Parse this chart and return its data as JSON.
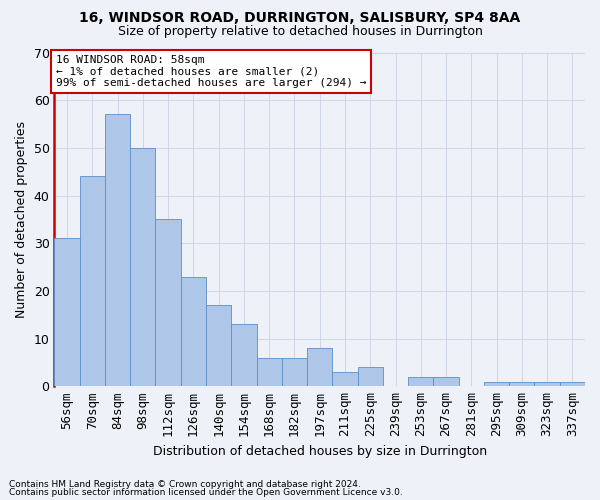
{
  "title1": "16, WINDSOR ROAD, DURRINGTON, SALISBURY, SP4 8AA",
  "title2": "Size of property relative to detached houses in Durrington",
  "xlabel": "Distribution of detached houses by size in Durrington",
  "ylabel": "Number of detached properties",
  "categories": [
    "56sqm",
    "70sqm",
    "84sqm",
    "98sqm",
    "112sqm",
    "126sqm",
    "140sqm",
    "154sqm",
    "168sqm",
    "182sqm",
    "197sqm",
    "211sqm",
    "225sqm",
    "239sqm",
    "253sqm",
    "267sqm",
    "281sqm",
    "295sqm",
    "309sqm",
    "323sqm",
    "337sqm"
  ],
  "values": [
    31,
    44,
    57,
    50,
    35,
    23,
    17,
    13,
    6,
    6,
    8,
    3,
    4,
    0,
    2,
    2,
    0,
    1,
    1,
    1,
    1
  ],
  "bar_color": "#aec6e8",
  "bar_edge_color": "#5b8fc9",
  "annotation_line_color": "#cc0000",
  "annotation_box_bg": "#ffffff",
  "annotation_box_edge": "#cc0000",
  "annotation_line1": "16 WINDSOR ROAD: 58sqm",
  "annotation_line2": "← 1% of detached houses are smaller (2)",
  "annotation_line3": "99% of semi-detached houses are larger (294) →",
  "ylim": [
    0,
    70
  ],
  "yticks": [
    0,
    10,
    20,
    30,
    40,
    50,
    60,
    70
  ],
  "grid_color": "#d0d8e8",
  "bg_color": "#eef2f8",
  "footnote1": "Contains HM Land Registry data © Crown copyright and database right 2024.",
  "footnote2": "Contains public sector information licensed under the Open Government Licence v3.0."
}
